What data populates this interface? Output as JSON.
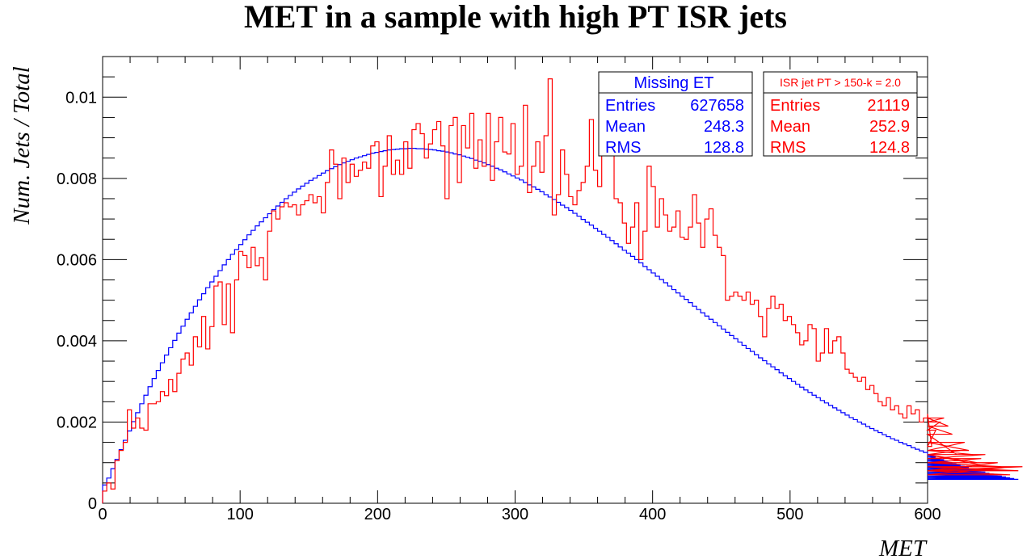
{
  "chart_data": {
    "type": "histogram",
    "title": "MET in a sample with high PT ISR jets",
    "xlabel": "MET",
    "ylabel": "Num. Jets / Total",
    "xlim": [
      0,
      600
    ],
    "ylim": [
      0,
      0.011
    ],
    "xticks": [
      0,
      100,
      200,
      300,
      400,
      500,
      600
    ],
    "xtick_labels": [
      "0",
      "100",
      "200",
      "300",
      "400",
      "500",
      "600"
    ],
    "yticks": [
      0,
      0.002,
      0.004,
      0.006,
      0.008,
      0.01
    ],
    "ytick_labels": [
      "0",
      "0.002",
      "0.004",
      "0.006",
      "0.008",
      "0.01"
    ],
    "bin_width": 3,
    "grid": false,
    "series": [
      {
        "name": "Missing ET",
        "color": "#0000ff",
        "values": [
          0.00045,
          0.00062,
          0.00085,
          0.00108,
          0.00132,
          0.00155,
          0.00178,
          0.00201,
          0.00223,
          0.00245,
          0.00266,
          0.00287,
          0.00307,
          0.00327,
          0.00346,
          0.00365,
          0.00383,
          0.00401,
          0.00419,
          0.00436,
          0.00453,
          0.00469,
          0.00485,
          0.00501,
          0.00516,
          0.00531,
          0.00545,
          0.00559,
          0.00573,
          0.00587,
          0.006,
          0.00613,
          0.00625,
          0.00637,
          0.00649,
          0.00661,
          0.00672,
          0.00683,
          0.00693,
          0.00703,
          0.00713,
          0.00723,
          0.00732,
          0.00741,
          0.0075,
          0.00758,
          0.00766,
          0.00774,
          0.00781,
          0.00788,
          0.00795,
          0.00801,
          0.00807,
          0.00813,
          0.00819,
          0.00824,
          0.00829,
          0.00834,
          0.00838,
          0.00842,
          0.00846,
          0.0085,
          0.00853,
          0.00856,
          0.00859,
          0.00862,
          0.00864,
          0.00866,
          0.00868,
          0.0087,
          0.00871,
          0.00872,
          0.00873,
          0.00873,
          0.00874,
          0.00874,
          0.00873,
          0.00873,
          0.00872,
          0.00871,
          0.0087,
          0.00868,
          0.00867,
          0.00865,
          0.00863,
          0.0086,
          0.00858,
          0.00855,
          0.00852,
          0.00849,
          0.00845,
          0.00842,
          0.00838,
          0.00834,
          0.0083,
          0.00825,
          0.00821,
          0.00816,
          0.00811,
          0.00806,
          0.00801,
          0.00796,
          0.0079,
          0.00784,
          0.00779,
          0.00773,
          0.00767,
          0.0076,
          0.00754,
          0.00748,
          0.00741,
          0.00734,
          0.00728,
          0.00721,
          0.00714,
          0.00707,
          0.00699,
          0.00692,
          0.00685,
          0.00677,
          0.0067,
          0.00662,
          0.00655,
          0.00647,
          0.00639,
          0.00631,
          0.00623,
          0.00616,
          0.00608,
          0.006,
          0.00592,
          0.00583,
          0.00575,
          0.00567,
          0.00559,
          0.00551,
          0.00543,
          0.00535,
          0.00526,
          0.00518,
          0.0051,
          0.00502,
          0.00494,
          0.00485,
          0.00477,
          0.00469,
          0.00461,
          0.00453,
          0.00445,
          0.00437,
          0.00429,
          0.00421,
          0.00413,
          0.00405,
          0.00397,
          0.00389,
          0.00381,
          0.00374,
          0.00366,
          0.00358,
          0.00351,
          0.00343,
          0.00336,
          0.00329,
          0.00321,
          0.00314,
          0.00307,
          0.003,
          0.00293,
          0.00286,
          0.00279,
          0.00273,
          0.00266,
          0.0026,
          0.00253,
          0.00247,
          0.00241,
          0.00235,
          0.00229,
          0.00223,
          0.00217,
          0.00211,
          0.00206,
          0.002,
          0.00195,
          0.00189,
          0.00184,
          0.00179,
          0.00174,
          0.00169,
          0.00164,
          0.00159,
          0.00155,
          0.0015,
          0.00146,
          0.00142,
          0.00137,
          0.00133,
          0.00129,
          0.00125,
          0.00121,
          0.00118,
          0.00114,
          0.0011,
          0.00107,
          0.00104,
          0.001,
          0.00097,
          0.00094,
          0.00091,
          0.00088,
          0.00085,
          0.00082,
          0.0008,
          0.00077,
          0.00074,
          0.00072,
          0.0007,
          0.00067,
          0.00065,
          0.00063,
          0.00061,
          0.00059
        ]
      },
      {
        "name": "ISR jet PT > 150-k = 2.0",
        "color": "#ff0000",
        "values": [
          0.0003,
          0.0005,
          0.00035,
          0.00105,
          0.0013,
          0.0015,
          0.0023,
          0.00185,
          0.0021,
          0.00185,
          0.0018,
          0.00245,
          0.00245,
          0.0025,
          0.00275,
          0.00265,
          0.00305,
          0.00275,
          0.0032,
          0.00355,
          0.0037,
          0.0034,
          0.0041,
          0.00385,
          0.0046,
          0.0038,
          0.00435,
          0.00535,
          0.00545,
          0.0044,
          0.0054,
          0.0042,
          0.0055,
          0.0062,
          0.0061,
          0.0058,
          0.0063,
          0.00585,
          0.00605,
          0.0055,
          0.0067,
          0.0072,
          0.007,
          0.0073,
          0.0074,
          0.0073,
          0.00735,
          0.0071,
          0.00735,
          0.00745,
          0.0076,
          0.0074,
          0.00755,
          0.00715,
          0.0079,
          0.0087,
          0.00835,
          0.0075,
          0.0085,
          0.0079,
          0.00835,
          0.00805,
          0.0082,
          0.0084,
          0.00825,
          0.0088,
          0.0089,
          0.00755,
          0.0083,
          0.00905,
          0.0081,
          0.00845,
          0.0081,
          0.0089,
          0.00825,
          0.0092,
          0.00935,
          0.0091,
          0.0085,
          0.00885,
          0.0092,
          0.0094,
          0.0088,
          0.0075,
          0.0093,
          0.0095,
          0.0079,
          0.0093,
          0.00875,
          0.0096,
          0.00825,
          0.00895,
          0.0083,
          0.0096,
          0.00795,
          0.0089,
          0.0095,
          0.00865,
          0.0086,
          0.00935,
          0.0081,
          0.0083,
          0.0098,
          0.00765,
          0.0083,
          0.0089,
          0.00815,
          0.00905,
          0.01045,
          0.0071,
          0.0076,
          0.0087,
          0.0081,
          0.00755,
          0.00735,
          0.0077,
          0.0079,
          0.0083,
          0.00945,
          0.0082,
          0.0078,
          0.0095,
          0.00885,
          0.0093,
          0.0075,
          0.0074,
          0.0069,
          0.0064,
          0.0068,
          0.0074,
          0.006,
          0.0067,
          0.0083,
          0.0078,
          0.0068,
          0.0075,
          0.0071,
          0.0067,
          0.0068,
          0.0072,
          0.00655,
          0.0065,
          0.0068,
          0.0076,
          0.0069,
          0.0063,
          0.007,
          0.00725,
          0.0066,
          0.0063,
          0.0061,
          0.005,
          0.0051,
          0.0052,
          0.0051,
          0.005,
          0.0052,
          0.0049,
          0.005,
          0.0046,
          0.0041,
          0.0048,
          0.0051,
          0.0048,
          0.0049,
          0.0045,
          0.0046,
          0.0044,
          0.0042,
          0.0039,
          0.004,
          0.0044,
          0.0043,
          0.0035,
          0.0037,
          0.0043,
          0.0037,
          0.004,
          0.0041,
          0.0037,
          0.0033,
          0.0032,
          0.0031,
          0.003,
          0.0031,
          0.0028,
          0.0029,
          0.0027,
          0.0025,
          0.0024,
          0.0026,
          0.0023,
          0.0024,
          0.0022,
          0.0021,
          0.0024,
          0.0022,
          0.0023,
          0.002,
          0.0021,
          0.0022,
          0.0014,
          0.0018,
          0.002,
          0.0021,
          0.0019,
          0.0017,
          0.0012,
          0.0013,
          0.0015,
          0.0013,
          0.0012,
          0.001,
          0.0011,
          0.0012,
          0.0009,
          0.0008,
          0.001,
          0.0009,
          0.0008,
          0.0007,
          0.0009,
          0.0008,
          0.0009
        ]
      }
    ],
    "stats_boxes": [
      {
        "title": "Missing ET",
        "color": "#0000ff",
        "entries_label": "Entries",
        "entries": "627658",
        "mean_label": "Mean",
        "mean": "248.3",
        "rms_label": "RMS",
        "rms": "128.8"
      },
      {
        "title": "ISR jet PT > 150-k = 2.0",
        "color": "#ff0000",
        "entries_label": "Entries",
        "entries": "21119",
        "mean_label": "Mean",
        "mean": "252.9",
        "rms_label": "RMS",
        "rms": "124.8"
      }
    ]
  }
}
